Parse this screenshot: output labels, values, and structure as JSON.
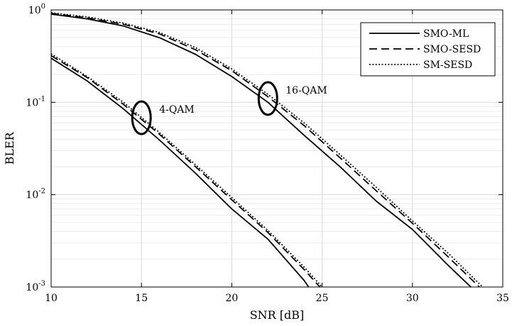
{
  "chart_data": {
    "type": "line",
    "xlabel": "SNR [dB]",
    "ylabel": "BLER",
    "xlim": [
      10,
      35
    ],
    "ylim": [
      0.001,
      1
    ],
    "yscale": "log",
    "grid": true,
    "legend_position": "top-right",
    "x_ticks": [
      10,
      15,
      20,
      25,
      30,
      35
    ],
    "x_tick_labels": [
      "10",
      "15",
      "20",
      "25",
      "30",
      "35"
    ],
    "y_ticks": [
      0.001,
      0.01,
      0.1,
      1
    ],
    "y_tick_labels": [
      {
        "base": "10",
        "exp": "-3"
      },
      {
        "base": "10",
        "exp": "-2"
      },
      {
        "base": "10",
        "exp": "-1"
      },
      {
        "base": "10",
        "exp": "0"
      }
    ],
    "legend": [
      {
        "label": "SMO-ML",
        "style": "solid"
      },
      {
        "label": "SMO-SESD",
        "style": "dashed"
      },
      {
        "label": "SM-SESD",
        "style": "dotted"
      }
    ],
    "series": [
      {
        "group": "4-QAM",
        "style": "solid",
        "x": [
          10,
          12,
          14,
          16,
          18,
          20,
          22,
          24,
          25
        ],
        "y": [
          0.3,
          0.17,
          0.085,
          0.039,
          0.017,
          0.007,
          0.0033,
          0.00118,
          0.00062
        ]
      },
      {
        "group": "4-QAM",
        "style": "dashed",
        "x": [
          10,
          12,
          14,
          16,
          18,
          20,
          22,
          24,
          25
        ],
        "y": [
          0.32,
          0.185,
          0.095,
          0.045,
          0.02,
          0.0088,
          0.0039,
          0.00155,
          0.00094
        ]
      },
      {
        "group": "4-QAM",
        "style": "dotted",
        "x": [
          10,
          12,
          14,
          16,
          18,
          20,
          22,
          24,
          25
        ],
        "y": [
          0.335,
          0.19,
          0.1,
          0.047,
          0.021,
          0.0093,
          0.0041,
          0.00165,
          0.001
        ]
      },
      {
        "group": "16-QAM",
        "style": "solid",
        "x": [
          10,
          12,
          14,
          16,
          18,
          20,
          22,
          24,
          26,
          28,
          30,
          32,
          34
        ],
        "y": [
          0.9,
          0.8,
          0.67,
          0.5,
          0.33,
          0.19,
          0.1,
          0.044,
          0.02,
          0.0085,
          0.0042,
          0.0017,
          0.00072
        ]
      },
      {
        "group": "16-QAM",
        "style": "dashed",
        "x": [
          10,
          12,
          14,
          16,
          18,
          20,
          22,
          24,
          26,
          28,
          30,
          32,
          34
        ],
        "y": [
          0.92,
          0.82,
          0.7,
          0.55,
          0.37,
          0.22,
          0.115,
          0.056,
          0.025,
          0.011,
          0.0049,
          0.0021,
          0.00088
        ]
      },
      {
        "group": "16-QAM",
        "style": "dotted",
        "x": [
          10,
          12,
          14,
          16,
          18,
          20,
          22,
          24,
          26,
          28,
          30,
          32,
          34
        ],
        "y": [
          0.93,
          0.84,
          0.72,
          0.57,
          0.39,
          0.23,
          0.122,
          0.06,
          0.027,
          0.012,
          0.0052,
          0.0023,
          0.00095
        ]
      }
    ],
    "annotations": [
      {
        "text": "4-QAM",
        "ellipse_center": [
          15,
          0.068
        ]
      },
      {
        "text": "16-QAM",
        "ellipse_center": [
          22,
          0.11
        ]
      }
    ]
  }
}
